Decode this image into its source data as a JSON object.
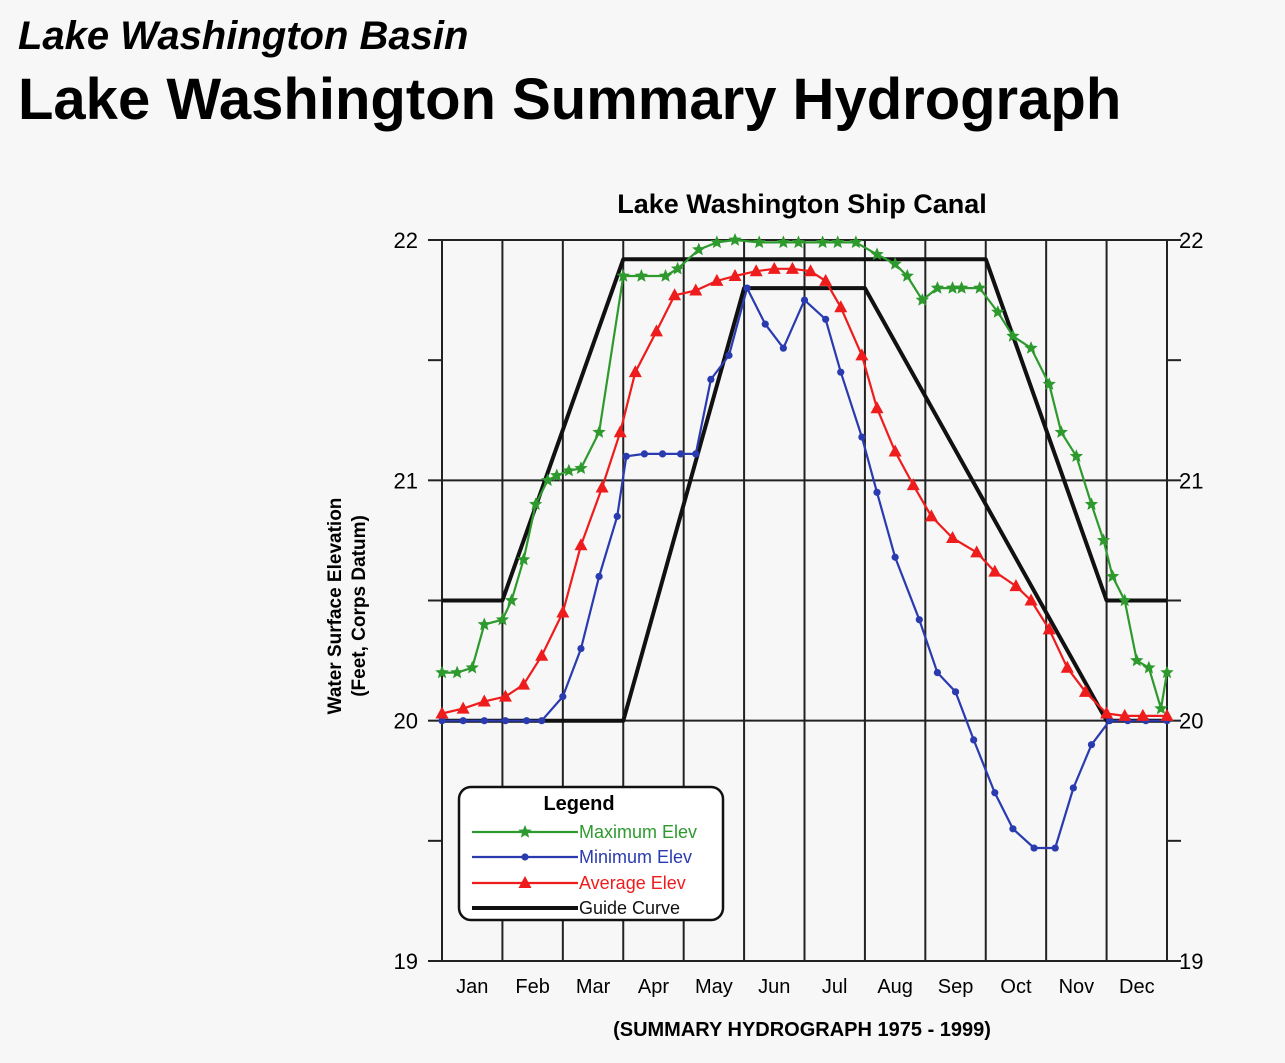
{
  "header": {
    "subtitle": "Lake Washington Basin",
    "title": "Lake Washington Summary Hydrograph"
  },
  "chart_data": {
    "type": "line",
    "title": "Lake Washington Ship Canal",
    "ylabel_line1": "Water Surface Elevation",
    "ylabel_line2": "(Feet, Corps Datum)",
    "xlabel": "(SUMMARY HYDROGRAPH 1975 - 1999)",
    "ylim": [
      19,
      22
    ],
    "yticks": [
      19,
      20,
      21,
      22
    ],
    "xlim": [
      0,
      12
    ],
    "months": [
      "Jan",
      "Feb",
      "Mar",
      "Apr",
      "May",
      "Jun",
      "Jul",
      "Aug",
      "Sep",
      "Oct",
      "Nov",
      "Dec"
    ],
    "legend": {
      "title": "Legend",
      "entries": [
        "Maximum Elev",
        "Minimum Elev",
        "Average Elev",
        "Guide Curve"
      ]
    },
    "series": [
      {
        "name": "Maximum Elev",
        "color": "#2e9a2e",
        "marker": "star",
        "x": [
          0,
          0.25,
          0.5,
          0.7,
          1.0,
          1.15,
          1.35,
          1.55,
          1.75,
          1.9,
          2.1,
          2.3,
          2.6,
          3.0,
          3.3,
          3.7,
          3.9,
          4.25,
          4.55,
          4.85,
          5.25,
          5.65,
          5.9,
          6.3,
          6.55,
          6.85,
          7.2,
          7.5,
          7.7,
          7.95,
          8.2,
          8.45,
          8.6,
          8.9,
          9.2,
          9.45,
          9.75,
          10.05,
          10.25,
          10.5,
          10.75,
          10.95,
          11.1,
          11.3,
          11.5,
          11.7,
          11.9,
          12.0
        ],
        "y": [
          20.2,
          20.2,
          20.22,
          20.4,
          20.42,
          20.5,
          20.67,
          20.9,
          21.0,
          21.02,
          21.04,
          21.05,
          21.2,
          21.85,
          21.85,
          21.85,
          21.88,
          21.96,
          21.99,
          22.0,
          21.99,
          21.99,
          21.99,
          21.99,
          21.99,
          21.99,
          21.94,
          21.9,
          21.85,
          21.75,
          21.8,
          21.8,
          21.8,
          21.8,
          21.7,
          21.6,
          21.55,
          21.4,
          21.2,
          21.1,
          20.9,
          20.75,
          20.6,
          20.5,
          20.25,
          20.22,
          20.05,
          20.2
        ]
      },
      {
        "name": "Minimum Elev",
        "color": "#2a3bb0",
        "marker": "dot",
        "x": [
          0,
          0.35,
          0.7,
          1.05,
          1.4,
          1.65,
          2.0,
          2.3,
          2.6,
          2.9,
          3.05,
          3.35,
          3.65,
          3.95,
          4.2,
          4.45,
          4.75,
          5.05,
          5.35,
          5.65,
          6.0,
          6.35,
          6.6,
          6.95,
          7.2,
          7.5,
          7.9,
          8.2,
          8.5,
          8.8,
          9.15,
          9.45,
          9.8,
          10.15,
          10.45,
          10.75,
          11.05,
          11.35,
          11.65,
          12.0
        ],
        "y": [
          20.0,
          20.0,
          20.0,
          20.0,
          20.0,
          20.0,
          20.1,
          20.3,
          20.6,
          20.85,
          21.1,
          21.11,
          21.11,
          21.11,
          21.11,
          21.42,
          21.52,
          21.8,
          21.65,
          21.55,
          21.75,
          21.67,
          21.45,
          21.18,
          20.95,
          20.68,
          20.42,
          20.2,
          20.12,
          19.92,
          19.7,
          19.55,
          19.47,
          19.47,
          19.72,
          19.9,
          20.0,
          20.0,
          20.0,
          20.0
        ]
      },
      {
        "name": "Average Elev",
        "color": "#ee1c1c",
        "marker": "triangle",
        "x": [
          0,
          0.35,
          0.7,
          1.05,
          1.35,
          1.65,
          2.0,
          2.3,
          2.65,
          2.95,
          3.2,
          3.55,
          3.85,
          4.2,
          4.55,
          4.85,
          5.2,
          5.5,
          5.8,
          6.1,
          6.35,
          6.6,
          6.95,
          7.2,
          7.5,
          7.8,
          8.1,
          8.45,
          8.85,
          9.15,
          9.5,
          9.75,
          10.05,
          10.35,
          10.65,
          11.0,
          11.3,
          11.6,
          12.0
        ],
        "y": [
          20.03,
          20.05,
          20.08,
          20.1,
          20.15,
          20.27,
          20.45,
          20.73,
          20.97,
          21.2,
          21.45,
          21.62,
          21.77,
          21.79,
          21.83,
          21.85,
          21.87,
          21.88,
          21.88,
          21.87,
          21.83,
          21.72,
          21.52,
          21.3,
          21.12,
          20.98,
          20.85,
          20.76,
          20.7,
          20.62,
          20.56,
          20.5,
          20.38,
          20.22,
          20.12,
          20.03,
          20.02,
          20.02,
          20.02
        ]
      },
      {
        "name": "Guide Curve",
        "color": "#111111",
        "marker": "none",
        "polylines": [
          {
            "x": [
              0,
              1.0,
              3.0,
              9.0,
              11.0,
              12.0
            ],
            "y": [
              20.5,
              20.5,
              21.92,
              21.92,
              20.5,
              20.5
            ]
          },
          {
            "x": [
              0,
              3.0,
              5.0,
              7.0,
              11.0,
              12.0
            ],
            "y": [
              20.0,
              20.0,
              21.8,
              21.8,
              20.0,
              20.0
            ]
          }
        ]
      }
    ]
  }
}
